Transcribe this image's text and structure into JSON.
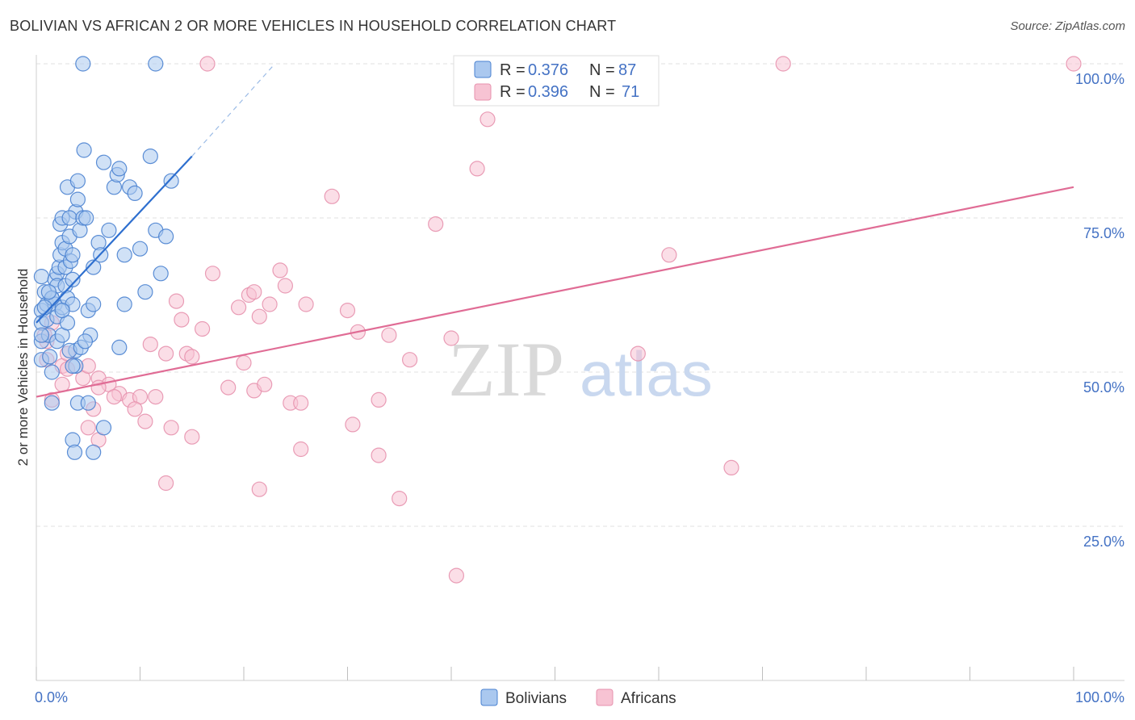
{
  "title": "BOLIVIAN VS AFRICAN 2 OR MORE VEHICLES IN HOUSEHOLD CORRELATION CHART",
  "source": "Source: ZipAtlas.com",
  "watermark": {
    "zip": "ZIP",
    "atlas": "atlas"
  },
  "colors": {
    "bolivians_fill": "#aac8ef",
    "bolivians_stroke": "#4a82d0",
    "bolivians_line": "#2e6fcf",
    "africans_fill": "#f7c3d3",
    "africans_stroke": "#e792ae",
    "africans_line": "#e06c95",
    "grid": "#e2e2e2",
    "tick_label": "#4472c4"
  },
  "chart_data": {
    "type": "scatter",
    "title": "BOLIVIAN VS AFRICAN 2 OR MORE VEHICLES IN HOUSEHOLD CORRELATION CHART",
    "xlabel": "",
    "ylabel": "2 or more Vehicles in Household",
    "xlim": [
      0,
      100
    ],
    "ylim": [
      0,
      100
    ],
    "x_tick_labels": [
      "0.0%",
      "100.0%"
    ],
    "y_ticks": [
      25,
      50,
      75,
      100
    ],
    "y_tick_labels": [
      "25.0%",
      "50.0%",
      "75.0%",
      "100.0%"
    ],
    "legend": [
      {
        "name": "Bolivians",
        "r_label": "R =",
        "r": "0.376",
        "n_label": "N =",
        "n": "87"
      },
      {
        "name": "Africans",
        "r_label": "R =",
        "r": "0.396",
        "n_label": "N =",
        "n": "71"
      }
    ],
    "series": [
      {
        "name": "Bolivians",
        "points": [
          [
            4.5,
            100
          ],
          [
            11.5,
            100
          ],
          [
            0.5,
            65.5
          ],
          [
            0.5,
            60
          ],
          [
            0.5,
            58
          ],
          [
            0.5,
            55
          ],
          [
            0.5,
            52
          ],
          [
            0.8,
            63
          ],
          [
            1,
            61
          ],
          [
            1,
            58.5
          ],
          [
            1.2,
            56
          ],
          [
            1.3,
            52.5
          ],
          [
            1.5,
            50
          ],
          [
            1.5,
            62
          ],
          [
            1.8,
            65
          ],
          [
            1.8,
            61
          ],
          [
            2,
            66
          ],
          [
            2,
            64
          ],
          [
            2,
            59
          ],
          [
            2,
            55
          ],
          [
            2.2,
            67
          ],
          [
            2.3,
            74
          ],
          [
            2.3,
            69
          ],
          [
            2.5,
            71
          ],
          [
            2.5,
            75
          ],
          [
            2.5,
            60.5
          ],
          [
            2.5,
            56
          ],
          [
            2.8,
            70
          ],
          [
            2.8,
            67
          ],
          [
            2.8,
            64
          ],
          [
            3,
            62
          ],
          [
            3,
            58
          ],
          [
            3.2,
            72
          ],
          [
            3.3,
            68
          ],
          [
            3.5,
            69
          ],
          [
            3.5,
            65
          ],
          [
            3.5,
            61
          ],
          [
            3.8,
            76
          ],
          [
            3.8,
            53.5
          ],
          [
            3.8,
            51
          ],
          [
            3.2,
            75
          ],
          [
            3,
            80
          ],
          [
            4,
            78
          ],
          [
            4,
            81
          ],
          [
            4.2,
            73
          ],
          [
            4.5,
            75
          ],
          [
            4.6,
            86
          ],
          [
            4.8,
            75
          ],
          [
            5,
            60
          ],
          [
            5.2,
            56
          ],
          [
            5.5,
            67
          ],
          [
            5.5,
            61
          ],
          [
            6,
            71
          ],
          [
            6.2,
            69
          ],
          [
            6.5,
            84
          ],
          [
            7,
            73
          ],
          [
            7.5,
            80
          ],
          [
            7.8,
            82
          ],
          [
            8,
            83
          ],
          [
            8.5,
            69
          ],
          [
            9,
            80
          ],
          [
            9.5,
            79
          ],
          [
            10,
            70
          ],
          [
            10.5,
            63
          ],
          [
            11,
            85
          ],
          [
            11.5,
            73
          ],
          [
            12,
            66
          ],
          [
            12.5,
            72
          ],
          [
            13,
            81
          ],
          [
            1.5,
            45
          ],
          [
            3.2,
            53.5
          ],
          [
            3.5,
            51
          ],
          [
            4,
            45
          ],
          [
            4.3,
            54
          ],
          [
            4.7,
            55
          ],
          [
            5,
            45
          ],
          [
            3.5,
            39
          ],
          [
            3.7,
            37
          ],
          [
            5.5,
            37
          ],
          [
            6.5,
            41
          ],
          [
            8,
            54
          ],
          [
            8.5,
            61
          ],
          [
            1.5,
            62
          ],
          [
            0.5,
            56
          ],
          [
            2.5,
            60
          ],
          [
            1.2,
            63
          ],
          [
            0.8,
            60.5
          ]
        ]
      },
      {
        "name": "Africans",
        "points": [
          [
            16.5,
            100
          ],
          [
            72,
            100
          ],
          [
            100,
            100
          ],
          [
            43.5,
            91
          ],
          [
            42.5,
            83
          ],
          [
            28.5,
            78.5
          ],
          [
            38.5,
            74
          ],
          [
            61,
            69
          ],
          [
            17,
            66
          ],
          [
            23.5,
            66.5
          ],
          [
            24,
            64
          ],
          [
            20.5,
            62.5
          ],
          [
            21,
            63
          ],
          [
            22.5,
            61
          ],
          [
            13.5,
            61.5
          ],
          [
            19.5,
            60.5
          ],
          [
            16,
            57
          ],
          [
            14,
            58.5
          ],
          [
            21.5,
            59
          ],
          [
            26,
            61
          ],
          [
            30,
            60
          ],
          [
            31,
            56.5
          ],
          [
            34,
            56
          ],
          [
            40,
            55.5
          ],
          [
            36,
            52
          ],
          [
            58,
            53
          ],
          [
            11,
            54.5
          ],
          [
            12.5,
            53
          ],
          [
            14.5,
            53
          ],
          [
            15,
            52.5
          ],
          [
            1,
            52
          ],
          [
            2.5,
            51
          ],
          [
            3,
            50.5
          ],
          [
            4.5,
            49
          ],
          [
            6,
            49
          ],
          [
            7,
            48
          ],
          [
            8,
            46.5
          ],
          [
            9,
            45.5
          ],
          [
            10,
            46
          ],
          [
            11.5,
            46
          ],
          [
            3,
            53
          ],
          [
            5,
            51
          ],
          [
            18.5,
            47.5
          ],
          [
            20,
            51.5
          ],
          [
            21,
            47
          ],
          [
            22,
            48
          ],
          [
            24.5,
            45
          ],
          [
            25.5,
            45
          ],
          [
            33,
            45.5
          ],
          [
            6,
            47.5
          ],
          [
            1.5,
            45.5
          ],
          [
            5,
            41
          ],
          [
            6,
            39
          ],
          [
            10.5,
            42
          ],
          [
            13,
            41
          ],
          [
            15,
            39.5
          ],
          [
            25.5,
            37.5
          ],
          [
            30.5,
            41.5
          ],
          [
            33,
            36.5
          ],
          [
            12.5,
            32
          ],
          [
            21.5,
            31
          ],
          [
            35,
            29.5
          ],
          [
            67,
            34.5
          ],
          [
            40.5,
            17
          ],
          [
            2.5,
            48
          ],
          [
            5.5,
            44
          ],
          [
            7.5,
            46
          ],
          [
            1,
            55
          ],
          [
            0.8,
            56
          ],
          [
            1.5,
            58
          ],
          [
            9.5,
            44
          ]
        ]
      }
    ],
    "trend_lines": [
      {
        "series": "Bolivians",
        "x": [
          0,
          15
        ],
        "y": [
          58,
          85
        ],
        "dashed_extension_to": [
          23,
          100
        ]
      },
      {
        "series": "Africans",
        "x": [
          0,
          100
        ],
        "y": [
          46,
          80
        ]
      }
    ]
  }
}
